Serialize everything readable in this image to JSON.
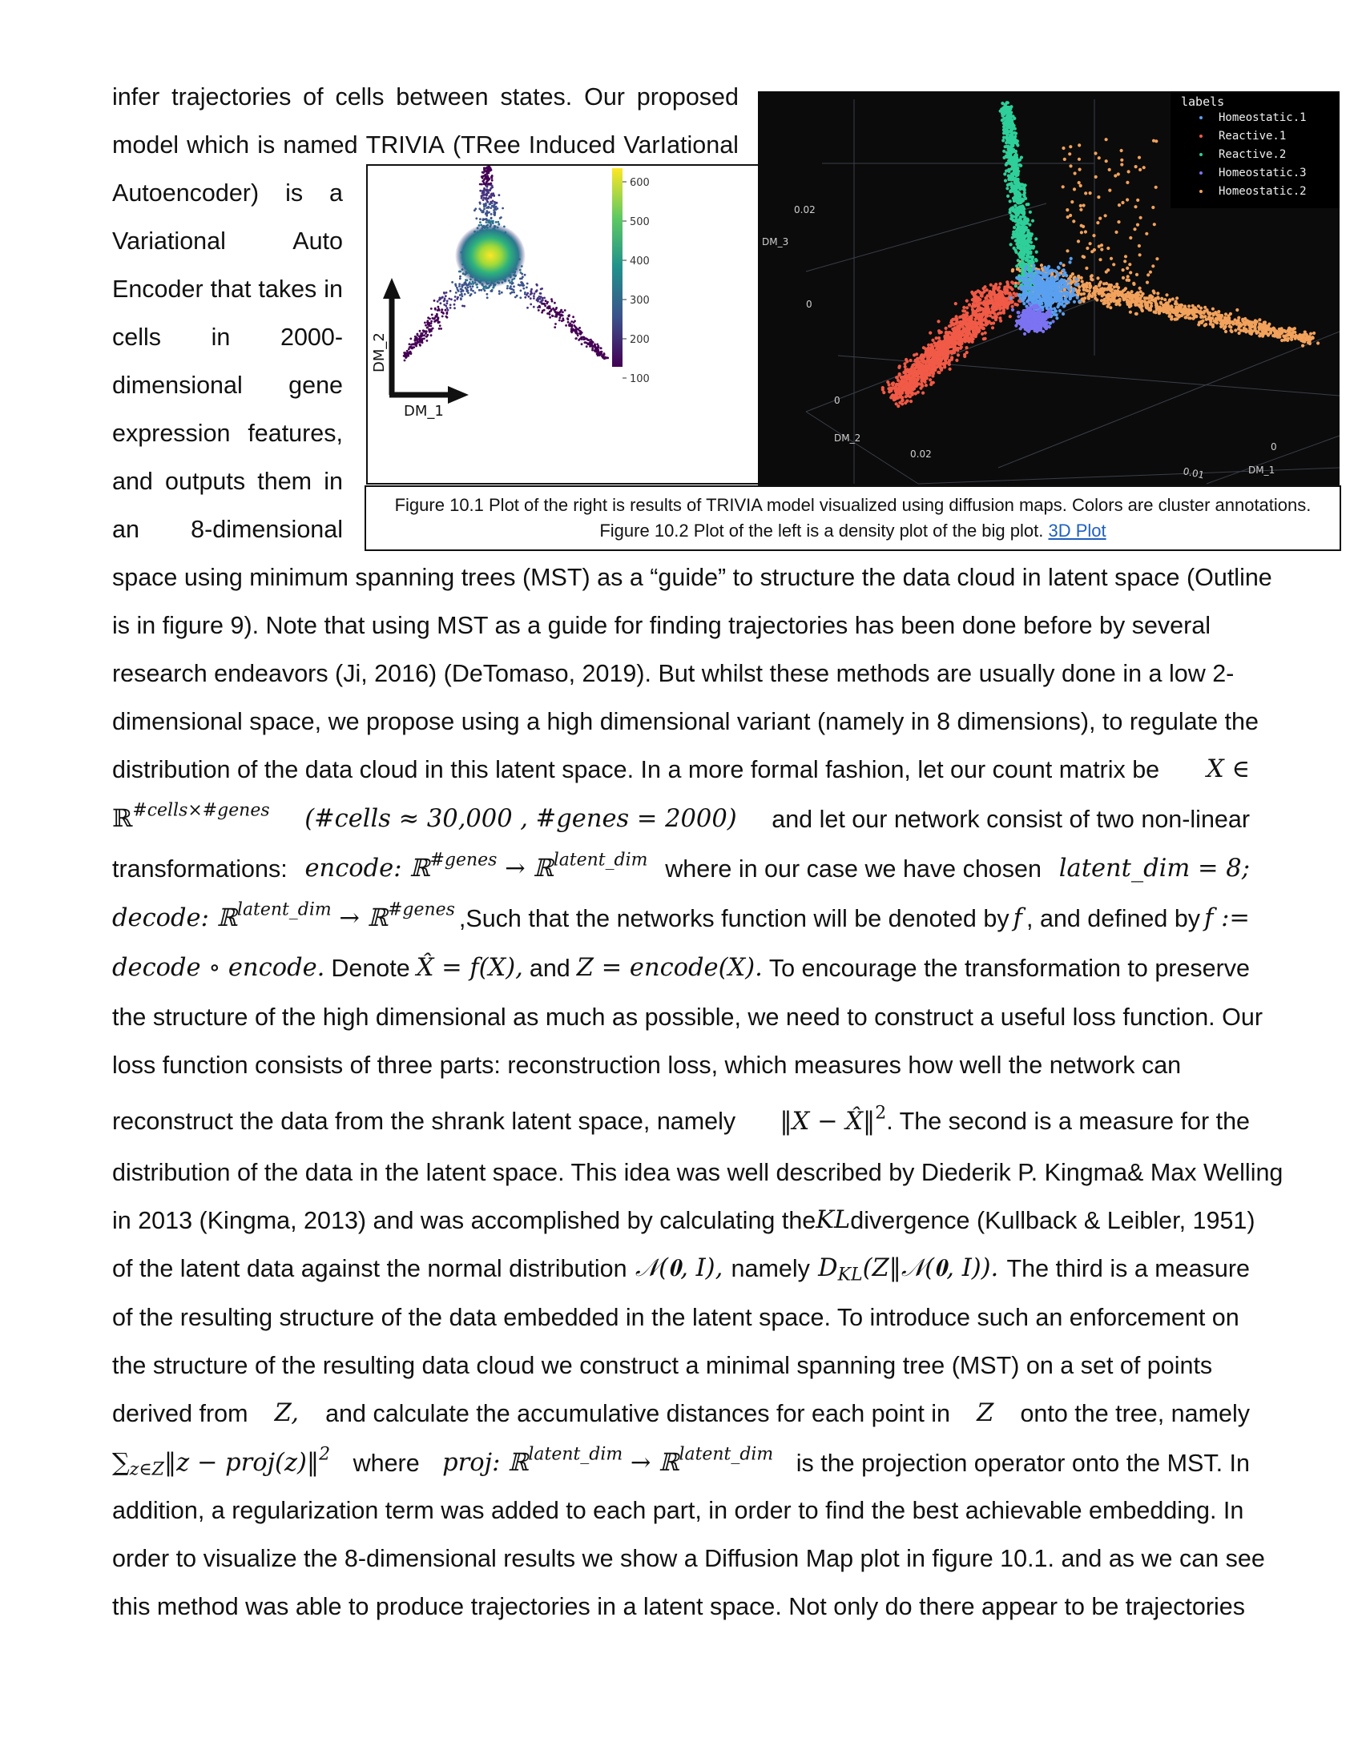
{
  "top_lines": [
    [
      "infer",
      "trajectories",
      "of",
      "cells",
      "between",
      "states.",
      "Our",
      "proposed"
    ],
    [
      "model",
      "which",
      "is",
      "named",
      "TRIVIA",
      "(TRee",
      "Induced",
      "VarIational"
    ]
  ],
  "side_lines": [
    [
      "Autoencoder)",
      "is",
      "a"
    ],
    [
      "Variational",
      "Auto"
    ],
    [
      "Encoder",
      "that",
      "takes",
      "in"
    ],
    [
      "cells",
      "in",
      "2000-"
    ],
    [
      "dimensional",
      "gene"
    ],
    [
      "expression",
      "features,"
    ],
    [
      "and",
      "outputs",
      "them",
      "in"
    ],
    [
      "an",
      "8-dimensional"
    ]
  ],
  "body": {
    "l1": "space using minimum spanning trees (MST) as a “guide” to structure the data cloud in latent space (Outline",
    "l2": "is in figure 9). Note that using MST as a guide for finding trajectories has been done before by several",
    "l3": "research endeavors (Ji, 2016) (DeTomaso, 2019). But whilst these methods are usually done in a low 2-",
    "l4": "dimensional space, we propose using a high dimensional variant (namely in 8 dimensions), to regulate the",
    "l5": "distribution of the data cloud in this latent space. In a more formal fashion, let our count matrix be",
    "l5m": "X ∈",
    "l6a": "ℝ",
    "l6sup": "#cells×#genes",
    "l6m": "(#cells ≈ 30,000 , #genes = 2000)",
    "l6b": "and let our network consist of two non-linear",
    "l7a": "transformations:",
    "l7m1": "encode: ℝ",
    "l7sup1": "#genes",
    "l7m2": "→ ℝ",
    "l7sup2": "latent_dim",
    "l7b": "where in our case we have chosen",
    "l7m3": "latent_dim = 8;",
    "l8m1": "decode: ℝ",
    "l8sup1": "latent_dim",
    "l8m2": "→ ℝ",
    "l8sup2": "#genes",
    "l8b": ",Such that the networks function will be denoted by",
    "l8m3": "f",
    "l8c": ", and defined by",
    "l8m4": "f :=",
    "l9m1": "decode ∘ encode.",
    "l9a": "Denote",
    "l9m2": "X̂ = f(X),",
    "l9b": "and",
    "l9m3": "Z = encode(X).",
    "l9c": "To encourage the transformation to preserve",
    "l10": "the structure of the high dimensional as much as possible, we need to construct a useful loss function. Our",
    "l11": "loss function consists of three parts: reconstruction loss, which measures how well the network can",
    "l12a": "reconstruct the data from the shrank latent space, namely",
    "l12m": "‖X − X̂‖",
    "l12sup": "2",
    "l12b": ". The second is a measure for the",
    "l13": "distribution of the data in the latent space. This idea was well described by Diederik P. Kingma& Max Welling",
    "l14a": "in 2013 (Kingma, 2013) and was accomplished by calculating the",
    "l14m": "KL",
    "l14b": "divergence (Kullback & Leibler, 1951)",
    "l15a": "of the latent data against the normal distribution",
    "l15m1": "𝒩(𝟎, I),",
    "l15b": "namely",
    "l15m2": "D",
    "l15sub": "KL",
    "l15m3": "(Z‖𝒩(𝟎, I)).",
    "l15c": "The third is a measure",
    "l16": "of the resulting structure of the data embedded in the latent space. To introduce such an enforcement on",
    "l17": "the structure of the resulting data cloud we construct a minimal spanning tree (MST) on a set of points",
    "l18a": "derived from",
    "l18m1": "Z,",
    "l18b": "and calculate the accumulative distances for each point in",
    "l18m2": "Z",
    "l18c": "onto the tree, namely",
    "l19m1": "∑",
    "l19sub": "z∈Z",
    "l19m2": "‖z − proj(z)‖",
    "l19sup": "2",
    "l19a": "where",
    "l19m3": "proj: ℝ",
    "l19sup2": "latent_dim",
    "l19m4": "→ ℝ",
    "l19sup3": "latent_dim",
    "l19b": "is the projection operator onto the MST. In",
    "l20": "addition, a regularization term was added to each part, in order to find the best achievable embedding. In",
    "l21": "order to visualize the 8-dimensional results we show a Diffusion Map plot in figure 10.1. and as we can see",
    "l22": "this method was able to produce trajectories in a latent space. Not only do there appear to be trajectories"
  },
  "fig_left": {
    "xlabel": "DM_1",
    "ylabel": "DM_2",
    "colorbar_ticks": [
      "600",
      "500",
      "400",
      "300",
      "200",
      "100"
    ]
  },
  "fig_right": {
    "legend_title": "labels",
    "legend": [
      {
        "label": "Homeostatic.1",
        "color": "#5aa0f0"
      },
      {
        "label": "Reactive.1",
        "color": "#f05a46"
      },
      {
        "label": "Reactive.2",
        "color": "#2fcf9a"
      },
      {
        "label": "Homeostatic.3",
        "color": "#7b73f2"
      },
      {
        "label": "Homeostatic.2",
        "color": "#f2a25c"
      }
    ],
    "axis_labels": {
      "dm1": "DM_1",
      "dm2": "DM_2",
      "dm3": "DM_3"
    },
    "tick_labels": {
      "z1": "0.02",
      "z2": "0",
      "y1": "0",
      "y2": "0.02",
      "x1": "0.01",
      "x2": "0"
    }
  },
  "caption": {
    "line1": "Figure 10.1 Plot of the right is results of TRIVIA model visualized using diffusion maps. Colors are cluster annotations.",
    "line2": "Figure 10.2 Plot of the left is a density plot of the big plot.",
    "link": "3D Plot"
  }
}
